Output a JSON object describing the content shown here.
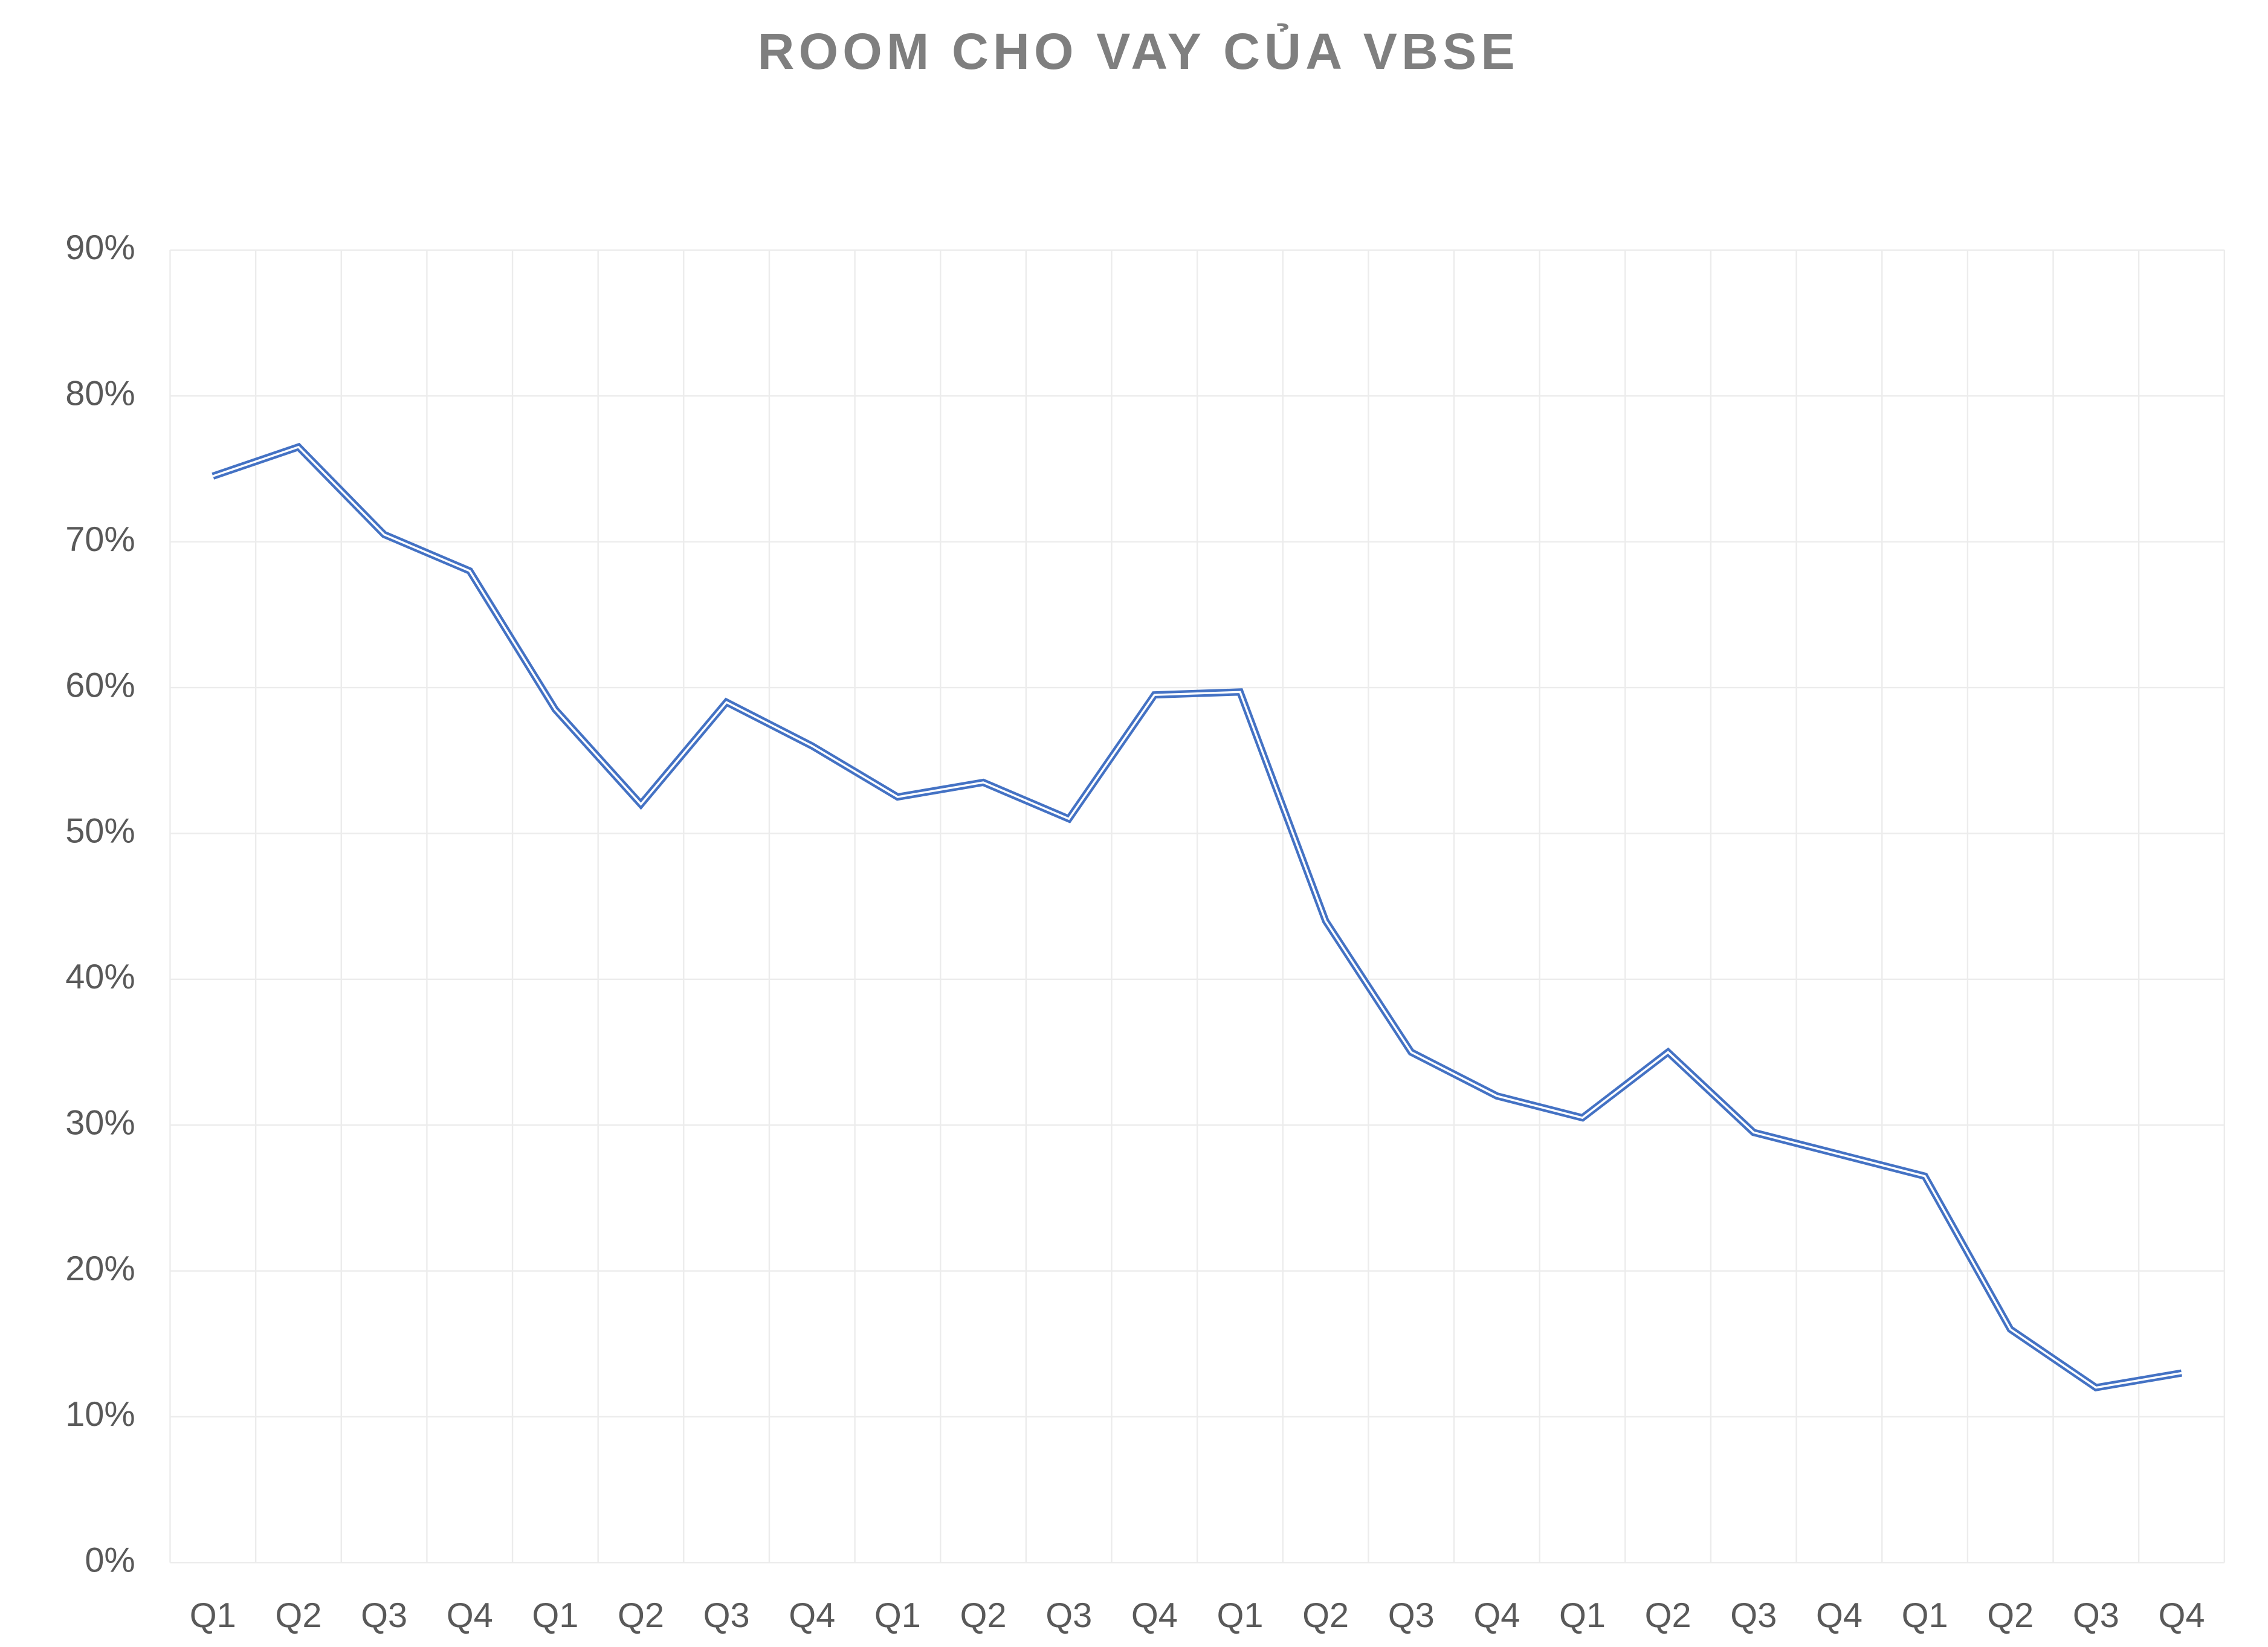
{
  "chart_data": {
    "type": "line",
    "title": "ROOM CHO VAY CỦA VBSE",
    "categories": [
      "Q1",
      "Q2",
      "Q3",
      "Q4",
      "Q1",
      "Q2",
      "Q3",
      "Q4",
      "Q1",
      "Q2",
      "Q3",
      "Q4",
      "Q1",
      "Q2",
      "Q3",
      "Q4",
      "Q1",
      "Q2",
      "Q3",
      "Q4",
      "Q1",
      "Q2",
      "Q3",
      "Q4"
    ],
    "series": [
      {
        "color": "#4472c4",
        "values": [
          74.5,
          76.5,
          70.5,
          68,
          58.5,
          52,
          59,
          56,
          52.5,
          53.5,
          51,
          59.5,
          59.7,
          44,
          35,
          32,
          30.5,
          35,
          29.5,
          28,
          26.5,
          16,
          12,
          13
        ]
      }
    ],
    "ylim": [
      0,
      90
    ],
    "yticks": [
      {
        "value": 0,
        "label": "0%"
      },
      {
        "value": 10,
        "label": "10%"
      },
      {
        "value": 20,
        "label": "20%"
      },
      {
        "value": 30,
        "label": "30%"
      },
      {
        "value": 40,
        "label": "40%"
      },
      {
        "value": 50,
        "label": "50%"
      },
      {
        "value": 60,
        "label": "60%"
      },
      {
        "value": 70,
        "label": "70%"
      },
      {
        "value": 80,
        "label": "80%"
      },
      {
        "value": 90,
        "label": "90%"
      }
    ],
    "grid": true
  }
}
